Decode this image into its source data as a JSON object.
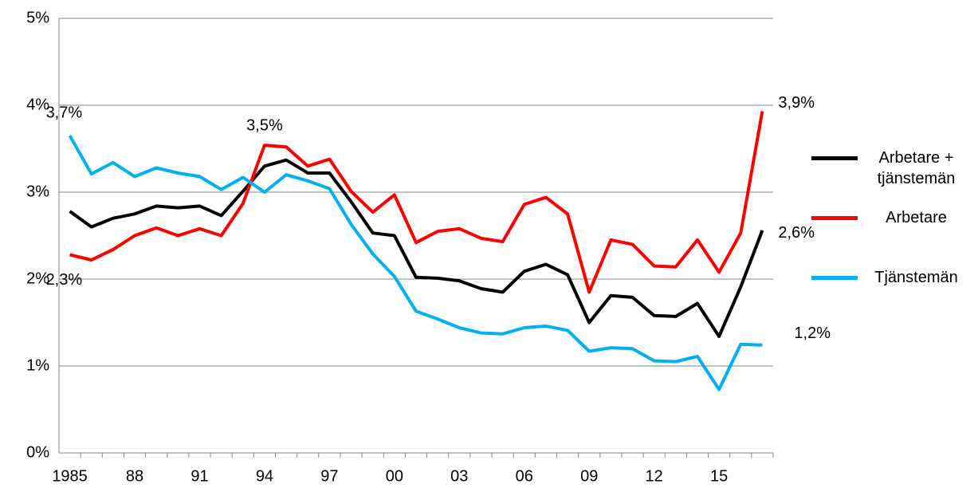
{
  "chart_data": {
    "type": "line",
    "categories": [
      "1985",
      null,
      null,
      "88",
      null,
      null,
      "91",
      null,
      null,
      "94",
      null,
      null,
      "97",
      null,
      null,
      "00",
      null,
      null,
      "03",
      null,
      null,
      "06",
      null,
      null,
      "09",
      null,
      null,
      "12",
      null,
      null,
      "15",
      null,
      null
    ],
    "series": [
      {
        "name": "Arbetare + tjänstemän",
        "color": "#000000",
        "values": [
          2.78,
          2.6,
          2.7,
          2.75,
          2.84,
          2.82,
          2.84,
          2.73,
          3.01,
          3.3,
          3.37,
          3.22,
          3.22,
          2.89,
          2.53,
          2.5,
          2.02,
          2.01,
          1.98,
          1.89,
          1.85,
          2.09,
          2.17,
          2.05,
          1.5,
          1.81,
          1.79,
          1.58,
          1.57,
          1.72,
          1.34,
          1.91,
          2.56
        ],
        "value_labels": [
          null,
          null,
          null,
          null,
          null,
          null,
          null,
          null,
          null,
          null,
          null,
          null,
          null,
          null,
          null,
          null,
          null,
          null,
          null,
          null,
          null,
          null,
          null,
          null,
          null,
          null,
          null,
          null,
          null,
          null,
          null,
          null,
          "2,6%"
        ]
      },
      {
        "name": "Arbetare",
        "color": "#ff0000",
        "values": [
          2.28,
          2.22,
          2.34,
          2.5,
          2.59,
          2.5,
          2.58,
          2.5,
          2.87,
          3.54,
          3.52,
          3.3,
          3.38,
          3.01,
          2.77,
          2.97,
          2.42,
          2.55,
          2.58,
          2.47,
          2.43,
          2.86,
          2.94,
          2.75,
          1.85,
          2.45,
          2.4,
          2.15,
          2.14,
          2.45,
          2.08,
          2.53,
          3.93
        ],
        "value_labels": [
          "2,3%",
          null,
          null,
          null,
          null,
          null,
          null,
          null,
          null,
          "3,5%",
          null,
          null,
          null,
          null,
          null,
          null,
          null,
          null,
          null,
          null,
          null,
          null,
          null,
          null,
          null,
          null,
          null,
          null,
          null,
          null,
          null,
          null,
          "3,9%"
        ]
      },
      {
        "name": "Tjänstemän",
        "color": "#00b0f0",
        "values": [
          3.65,
          3.21,
          3.34,
          3.18,
          3.28,
          3.22,
          3.18,
          3.03,
          3.17,
          3.0,
          3.2,
          3.13,
          3.04,
          2.63,
          2.29,
          2.03,
          1.63,
          1.54,
          1.44,
          1.38,
          1.37,
          1.44,
          1.46,
          1.41,
          1.17,
          1.21,
          1.2,
          1.06,
          1.05,
          1.11,
          0.73,
          1.25,
          1.24
        ],
        "value_labels": [
          "3,7%",
          null,
          null,
          null,
          null,
          null,
          null,
          null,
          null,
          null,
          null,
          null,
          null,
          null,
          null,
          null,
          null,
          null,
          null,
          null,
          null,
          null,
          null,
          null,
          null,
          null,
          null,
          null,
          null,
          null,
          null,
          null,
          "1,2%"
        ]
      }
    ],
    "ylim": [
      0,
      5
    ],
    "yticks": [
      {
        "value": 0,
        "label": "0%"
      },
      {
        "value": 1,
        "label": "1%"
      },
      {
        "value": 2,
        "label": "2%"
      },
      {
        "value": 3,
        "label": "3%"
      },
      {
        "value": 4,
        "label": "4%"
      },
      {
        "value": 5,
        "label": "5%"
      }
    ],
    "grid": true,
    "legend": "right"
  }
}
